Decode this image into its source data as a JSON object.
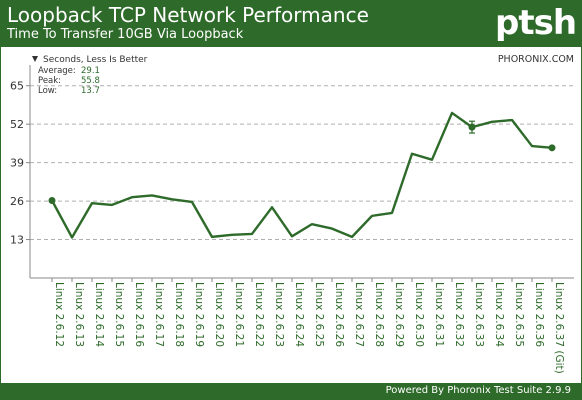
{
  "header": {
    "title": "Loopback TCP Network Performance",
    "subtitle": "Time To Transfer 10GB Via Loopback",
    "logo": "ptsh"
  },
  "legend": {
    "label": "Seconds, Less Is Better",
    "source": "PHORONIX.COM",
    "stats": [
      {
        "label": "Average:",
        "value": "29.1"
      },
      {
        "label": "Peak:",
        "value": "55.8"
      },
      {
        "label": "Low:",
        "value": "13.7"
      }
    ]
  },
  "footer": {
    "text": "Powered By Phoronix Test Suite 2.9.9"
  },
  "colors": {
    "brand": "#2e6b2a",
    "line": "#2e6b2a",
    "grid": "#b0b0b0",
    "label": "#2e6b2a"
  },
  "chart_data": {
    "type": "line",
    "categories": [
      "Linux 2.6.12",
      "Linux 2.6.13",
      "Linux 2.6.14",
      "Linux 2.6.15",
      "Linux 2.6.16",
      "Linux 2.6.17",
      "Linux 2.6.18",
      "Linux 2.6.19",
      "Linux 2.6.20",
      "Linux 2.6.21",
      "Linux 2.6.22",
      "Linux 2.6.23",
      "Linux 2.6.24",
      "Linux 2.6.25",
      "Linux 2.6.26",
      "Linux 2.6.27",
      "Linux 2.6.28",
      "Linux 2.6.29",
      "Linux 2.6.30",
      "Linux 2.6.31",
      "Linux 2.6.32",
      "Linux 2.6.33",
      "Linux 2.6.34",
      "Linux 2.6.35",
      "Linux 2.6.36",
      "Linux 2.6.37 (Git)"
    ],
    "values": [
      26.2,
      13.7,
      25.3,
      24.7,
      27.3,
      27.9,
      26.6,
      25.7,
      13.9,
      14.6,
      14.9,
      23.9,
      14.1,
      18.2,
      16.7,
      13.9,
      21.0,
      22.0,
      42.0,
      40.0,
      55.8,
      51.0,
      52.8,
      53.4,
      44.6,
      44.0
    ],
    "markers": [
      0,
      21,
      25
    ],
    "error_bars": [
      {
        "index": 21,
        "low": 49.0,
        "high": 53.0
      }
    ],
    "yticks": [
      13,
      26,
      39,
      52,
      65
    ],
    "ylim": [
      0,
      72
    ],
    "grid": true
  }
}
